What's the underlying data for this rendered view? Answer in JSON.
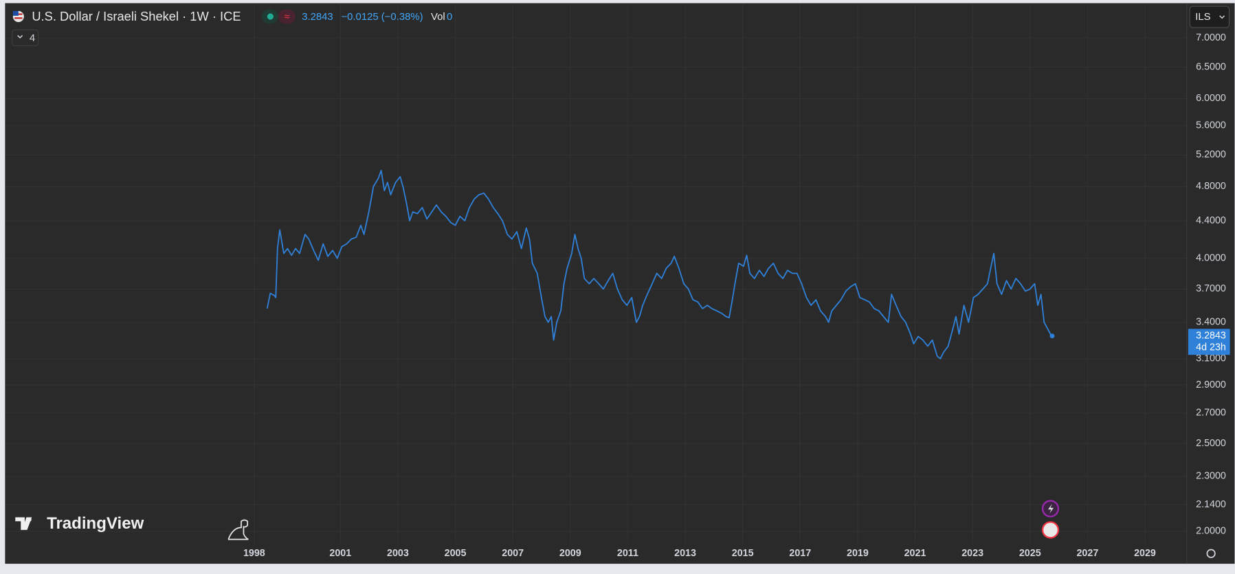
{
  "header": {
    "change": "−0.0125 (−0.38%)",
    "volume_label": "Vol",
    "volume": 0,
    "indicators_count": 4,
    "currency": "ILS",
    "countdown": "4d 23h",
    "logo": "TradingView"
  },
  "chart_data": {
    "type": "line",
    "title": "U.S. Dollar / Israeli Shekel · 1W · ICE",
    "log_scale": true,
    "grid": true,
    "xlim": [
      1989.33,
      2030.45
    ],
    "ylim": [
      1.94,
      7.63
    ],
    "xticks": [
      1998,
      2001,
      2003,
      2005,
      2007,
      2009,
      2011,
      2013,
      2015,
      2017,
      2019,
      2021,
      2023,
      2025,
      2027,
      2029
    ],
    "yticks": [
      {
        "value": 2,
        "label": "2.0000"
      },
      {
        "value": 2.14,
        "label": "2.1400"
      },
      {
        "value": 2.3,
        "label": "2.3000"
      },
      {
        "value": 2.5,
        "label": "2.5000"
      },
      {
        "value": 2.7,
        "label": "2.7000"
      },
      {
        "value": 2.9,
        "label": "2.9000"
      },
      {
        "value": 3.1,
        "label": "3.1000"
      },
      {
        "value": 3.4,
        "label": "3.4000"
      },
      {
        "value": 3.7,
        "label": "3.7000"
      },
      {
        "value": 4,
        "label": "4.0000"
      },
      {
        "value": 4.4,
        "label": "4.4000"
      },
      {
        "value": 4.8,
        "label": "4.8000"
      },
      {
        "value": 5.2,
        "label": "5.2000"
      },
      {
        "value": 5.6,
        "label": "5.6000"
      },
      {
        "value": 6,
        "label": "6.0000"
      },
      {
        "value": 6.5,
        "label": "6.5000"
      },
      {
        "value": 7,
        "label": "7.0000"
      }
    ],
    "x": [
      1998.45,
      1998.56,
      1998.7,
      1998.75,
      1998.81,
      1998.89,
      1999.03,
      1999.16,
      1999.3,
      1999.44,
      1999.58,
      1999.77,
      1999.9,
      2000.07,
      2000.23,
      2000.4,
      2000.56,
      2000.73,
      2000.89,
      2001.05,
      2001.22,
      2001.38,
      2001.55,
      2001.71,
      2001.82,
      2001.99,
      2002.15,
      2002.32,
      2002.42,
      2002.53,
      2002.64,
      2002.75,
      2002.92,
      2003.08,
      2003.19,
      2003.3,
      2003.41,
      2003.52,
      2003.68,
      2003.85,
      2004.01,
      2004.18,
      2004.34,
      2004.51,
      2004.67,
      2004.84,
      2005.0,
      2005.16,
      2005.33,
      2005.49,
      2005.66,
      2005.82,
      2005.99,
      2006.15,
      2006.32,
      2006.48,
      2006.64,
      2006.81,
      2006.97,
      2007.14,
      2007.3,
      2007.47,
      2007.58,
      2007.68,
      2007.85,
      2008.01,
      2008.12,
      2008.23,
      2008.34,
      2008.42,
      2008.53,
      2008.67,
      2008.78,
      2008.89,
      2009.05,
      2009.16,
      2009.27,
      2009.38,
      2009.49,
      2009.66,
      2009.82,
      2009.99,
      2010.15,
      2010.32,
      2010.48,
      2010.64,
      2010.81,
      2010.97,
      2011.14,
      2011.3,
      2011.41,
      2011.52,
      2011.68,
      2011.85,
      2012.01,
      2012.18,
      2012.34,
      2012.51,
      2012.62,
      2012.78,
      2012.95,
      2013.11,
      2013.27,
      2013.44,
      2013.6,
      2013.77,
      2013.93,
      2014.1,
      2014.26,
      2014.42,
      2014.53,
      2014.64,
      2014.75,
      2014.86,
      2015.03,
      2015.14,
      2015.25,
      2015.41,
      2015.58,
      2015.74,
      2015.9,
      2016.07,
      2016.23,
      2016.4,
      2016.56,
      2016.73,
      2016.89,
      2017.05,
      2017.22,
      2017.38,
      2017.55,
      2017.71,
      2017.88,
      2017.99,
      2018.1,
      2018.26,
      2018.42,
      2018.59,
      2018.75,
      2018.92,
      2019.08,
      2019.25,
      2019.41,
      2019.58,
      2019.74,
      2019.9,
      2020.07,
      2020.18,
      2020.34,
      2020.51,
      2020.67,
      2020.84,
      2020.95,
      2021.11,
      2021.27,
      2021.44,
      2021.6,
      2021.77,
      2021.88,
      2021.99,
      2022.15,
      2022.32,
      2022.42,
      2022.53,
      2022.7,
      2022.86,
      2023.03,
      2023.19,
      2023.36,
      2023.52,
      2023.63,
      2023.74,
      2023.85,
      2024.01,
      2024.18,
      2024.34,
      2024.51,
      2024.67,
      2024.84,
      2025.0,
      2025.16,
      2025.27,
      2025.38,
      2025.49,
      2025.6,
      2025.71,
      2025.77
    ],
    "series": [
      {
        "color": "#2f80d8",
        "values": [
          3.52,
          3.66,
          3.64,
          3.62,
          4.1,
          4.3,
          4.05,
          4.1,
          4.03,
          4.1,
          4.05,
          4.25,
          4.2,
          4.08,
          3.98,
          4.15,
          4.02,
          4.08,
          4.0,
          4.12,
          4.15,
          4.2,
          4.22,
          4.35,
          4.25,
          4.5,
          4.8,
          4.9,
          5.0,
          4.75,
          4.85,
          4.7,
          4.85,
          4.92,
          4.78,
          4.6,
          4.4,
          4.5,
          4.48,
          4.55,
          4.42,
          4.5,
          4.58,
          4.5,
          4.45,
          4.38,
          4.35,
          4.45,
          4.4,
          4.55,
          4.65,
          4.7,
          4.72,
          4.65,
          4.55,
          4.48,
          4.4,
          4.25,
          4.2,
          4.28,
          4.1,
          4.32,
          4.2,
          3.95,
          3.85,
          3.6,
          3.45,
          3.4,
          3.45,
          3.25,
          3.4,
          3.5,
          3.75,
          3.9,
          4.05,
          4.25,
          4.1,
          4.0,
          3.8,
          3.75,
          3.8,
          3.75,
          3.7,
          3.78,
          3.85,
          3.7,
          3.6,
          3.55,
          3.62,
          3.4,
          3.45,
          3.55,
          3.65,
          3.75,
          3.85,
          3.8,
          3.9,
          3.95,
          4.02,
          3.9,
          3.75,
          3.7,
          3.6,
          3.58,
          3.52,
          3.55,
          3.52,
          3.5,
          3.48,
          3.45,
          3.44,
          3.6,
          3.78,
          3.95,
          3.92,
          4.03,
          3.85,
          3.8,
          3.88,
          3.82,
          3.9,
          3.95,
          3.85,
          3.8,
          3.88,
          3.85,
          3.85,
          3.75,
          3.62,
          3.55,
          3.6,
          3.5,
          3.45,
          3.4,
          3.5,
          3.55,
          3.6,
          3.68,
          3.72,
          3.75,
          3.62,
          3.6,
          3.58,
          3.52,
          3.5,
          3.45,
          3.4,
          3.65,
          3.55,
          3.45,
          3.4,
          3.3,
          3.22,
          3.28,
          3.25,
          3.2,
          3.25,
          3.12,
          3.1,
          3.15,
          3.2,
          3.35,
          3.45,
          3.3,
          3.55,
          3.4,
          3.62,
          3.65,
          3.7,
          3.75,
          3.9,
          4.05,
          3.75,
          3.65,
          3.78,
          3.7,
          3.8,
          3.75,
          3.68,
          3.7,
          3.75,
          3.55,
          3.65,
          3.4,
          3.35,
          3.3,
          3.2843
        ]
      }
    ]
  }
}
